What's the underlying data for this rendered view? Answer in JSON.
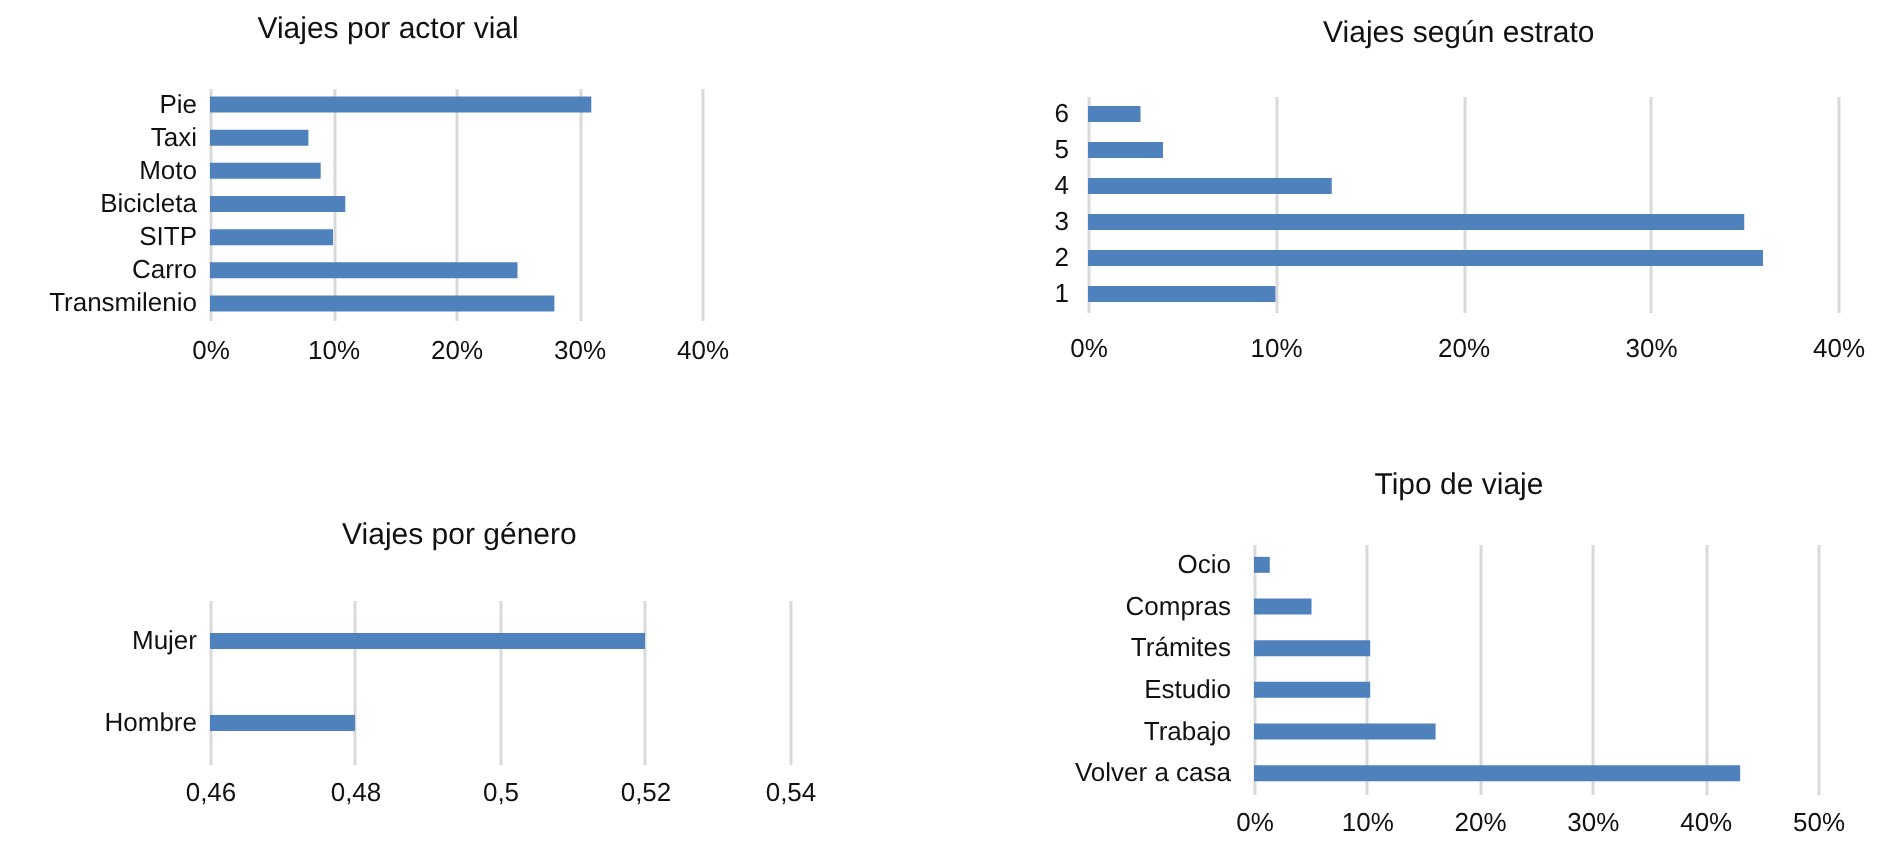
{
  "chart_data": [
    {
      "type": "bar",
      "orientation": "horizontal",
      "title": "Viajes por actor vial",
      "categories": [
        "Pie",
        "Taxi",
        "Moto",
        "Bicicleta",
        "SITP",
        "Carro",
        "Transmilenio"
      ],
      "values": [
        31,
        8,
        9,
        11,
        10,
        25,
        28
      ],
      "color": "#4f81bd",
      "xlim": [
        0,
        40
      ],
      "xticks": [
        {
          "value": 0,
          "label": "0%"
        },
        {
          "value": 10,
          "label": "10%"
        },
        {
          "value": 20,
          "label": "20%"
        },
        {
          "value": 30,
          "label": "30%"
        },
        {
          "value": 40,
          "label": "40%"
        }
      ],
      "grid": "x"
    },
    {
      "type": "bar",
      "orientation": "horizontal",
      "title": "Viajes según estrato",
      "categories": [
        "6",
        "5",
        "4",
        "3",
        "2",
        "1"
      ],
      "values": [
        2.8,
        4,
        13,
        35,
        36,
        10
      ],
      "color": "#4f81bd",
      "xlim": [
        0,
        40
      ],
      "xticks": [
        {
          "value": 0,
          "label": "0%"
        },
        {
          "value": 10,
          "label": "10%"
        },
        {
          "value": 20,
          "label": "20%"
        },
        {
          "value": 30,
          "label": "30%"
        },
        {
          "value": 40,
          "label": "40%"
        }
      ],
      "grid": "x"
    },
    {
      "type": "bar",
      "orientation": "horizontal",
      "title": "Viajes por género",
      "categories": [
        "Mujer",
        "Hombre"
      ],
      "values": [
        0.52,
        0.48
      ],
      "color": "#4f81bd",
      "xlim": [
        0.46,
        0.54
      ],
      "xticks": [
        {
          "value": 0.46,
          "label": "0,46"
        },
        {
          "value": 0.48,
          "label": "0,48"
        },
        {
          "value": 0.5,
          "label": "0,5"
        },
        {
          "value": 0.52,
          "label": "0,52"
        },
        {
          "value": 0.54,
          "label": "0,54"
        }
      ],
      "grid": "x"
    },
    {
      "type": "bar",
      "orientation": "horizontal",
      "title": "Tipo de viaje",
      "categories": [
        "Ocio",
        "Compras",
        "Trámites",
        "Estudio",
        "Trabajo",
        "Volver a casa"
      ],
      "values": [
        1.4,
        5.1,
        10.3,
        10.3,
        16.1,
        43.1
      ],
      "color": "#4f81bd",
      "xlim": [
        0,
        50
      ],
      "xticks": [
        {
          "value": 0,
          "label": "0%"
        },
        {
          "value": 10,
          "label": "10%"
        },
        {
          "value": 20,
          "label": "20%"
        },
        {
          "value": 30,
          "label": "30%"
        },
        {
          "value": 40,
          "label": "40%"
        },
        {
          "value": 50,
          "label": "50%"
        }
      ],
      "grid": "x"
    }
  ]
}
